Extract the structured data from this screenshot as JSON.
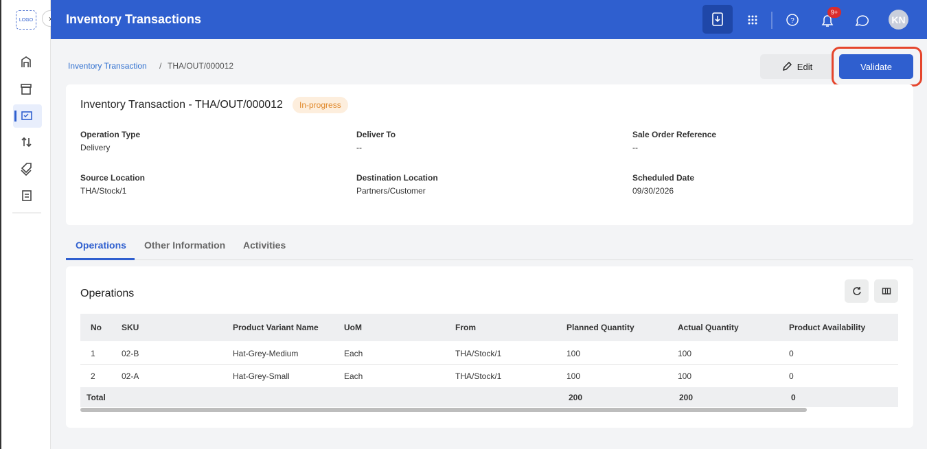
{
  "app": {
    "logo": "LOGO",
    "title": "Inventory Transactions",
    "notification_count": "9+",
    "user_initials": "KN"
  },
  "breadcrumb": {
    "parent": "Inventory Transaction",
    "current": "THA/OUT/000012"
  },
  "actions": {
    "edit": "Edit",
    "validate": "Validate"
  },
  "detail": {
    "title": "Inventory Transaction - THA/OUT/000012",
    "status": "In-progress",
    "fields": [
      {
        "label": "Operation Type",
        "value": "Delivery"
      },
      {
        "label": "Deliver To",
        "value": "--"
      },
      {
        "label": "Sale Order Reference",
        "value": "--"
      },
      {
        "label": "Source Location",
        "value": "THA/Stock/1"
      },
      {
        "label": "Destination Location",
        "value": "Partners/Customer"
      },
      {
        "label": "Scheduled Date",
        "value": "09/30/2026"
      }
    ]
  },
  "tabs": [
    "Operations",
    "Other Information",
    "Activities"
  ],
  "operations": {
    "title": "Operations",
    "columns": [
      "No",
      "SKU",
      "Product Variant Name",
      "UoM",
      "From",
      "Planned Quantity",
      "Actual Quantity",
      "Product Availability"
    ],
    "rows": [
      [
        1,
        "02-B",
        "Hat-Grey-Medium",
        "Each",
        "THA/Stock/1",
        100,
        100,
        0
      ],
      [
        2,
        "02-A",
        "Hat-Grey-Small",
        "Each",
        "THA/Stock/1",
        100,
        100,
        0
      ]
    ],
    "total": {
      "label": "Total",
      "planned": 200,
      "actual": 200,
      "availability": 0
    }
  }
}
